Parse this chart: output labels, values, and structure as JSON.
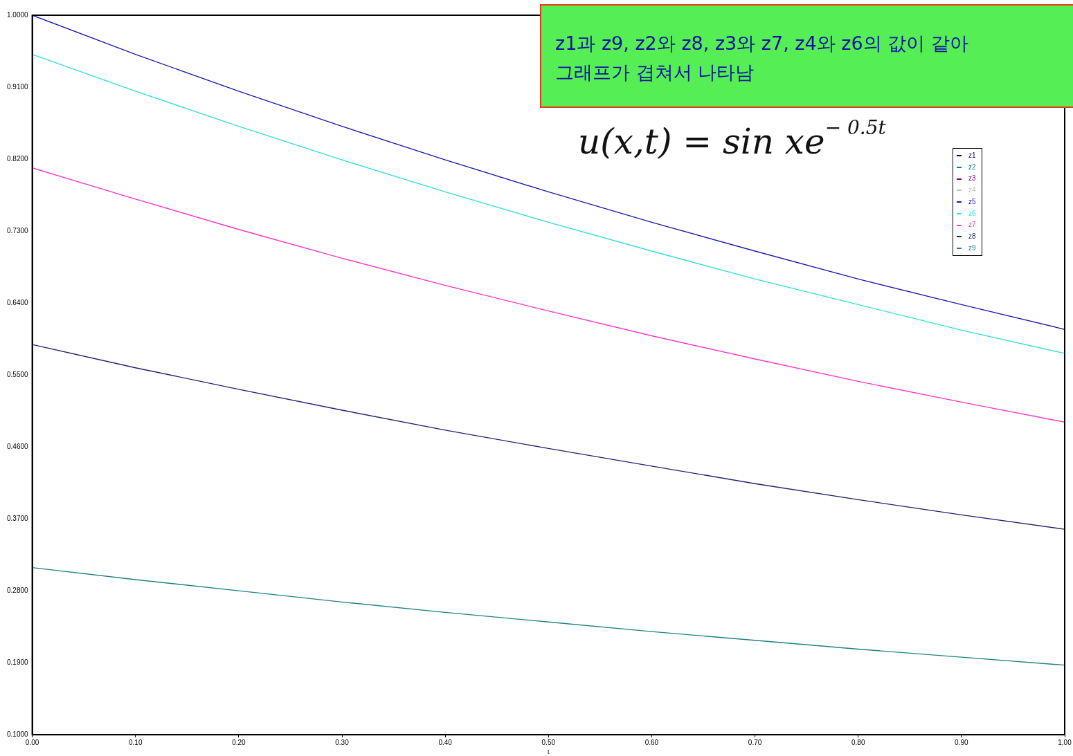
{
  "chart_data": {
    "type": "line",
    "xlabel": "t",
    "x": [
      0,
      0.1,
      0.2,
      0.3,
      0.4,
      0.5,
      0.6,
      0.7,
      0.8,
      0.9,
      1.0
    ],
    "series": [
      {
        "name": "z1",
        "color": "#000060",
        "values": [
          null,
          null,
          null,
          null,
          null,
          null,
          null,
          null,
          null,
          null,
          null
        ]
      },
      {
        "name": "z2",
        "color": "#008080",
        "values": [
          null,
          null,
          null,
          null,
          null,
          null,
          null,
          null,
          null,
          null,
          null
        ]
      },
      {
        "name": "z3",
        "color": "#800080",
        "values": [
          null,
          null,
          null,
          null,
          null,
          null,
          null,
          null,
          null,
          null,
          null
        ]
      },
      {
        "name": "z4",
        "color": "#c0c0c0",
        "values": [
          null,
          null,
          null,
          null,
          null,
          null,
          null,
          null,
          null,
          null,
          null
        ]
      },
      {
        "name": "z5",
        "color": "#1a1ab0",
        "values": [
          1.0,
          0.951,
          0.905,
          0.861,
          0.819,
          0.779,
          0.741,
          0.705,
          0.67,
          0.638,
          0.607
        ]
      },
      {
        "name": "z6",
        "color": "#33dddd",
        "values": [
          0.951,
          0.905,
          0.861,
          0.819,
          0.779,
          0.741,
          0.705,
          0.67,
          0.638,
          0.606,
          0.577
        ]
      },
      {
        "name": "z7",
        "color": "#ff33cc",
        "values": [
          0.809,
          0.77,
          0.732,
          0.696,
          0.662,
          0.63,
          0.599,
          0.57,
          0.542,
          0.516,
          0.491
        ]
      },
      {
        "name": "z8",
        "color": "#202070",
        "values": [
          0.588,
          0.559,
          0.532,
          0.506,
          0.481,
          0.458,
          0.436,
          0.414,
          0.394,
          0.375,
          0.357
        ]
      },
      {
        "name": "z9",
        "color": "#208080",
        "values": [
          0.309,
          0.294,
          0.28,
          0.266,
          0.253,
          0.241,
          0.229,
          0.218,
          0.207,
          0.197,
          0.187
        ]
      }
    ],
    "xlim": [
      0,
      1.0
    ],
    "xticks": [
      {
        "value": 0,
        "label": "0.00"
      },
      {
        "value": 0.1,
        "label": "0.10"
      },
      {
        "value": 0.2,
        "label": "0.20"
      },
      {
        "value": 0.3,
        "label": "0.30"
      },
      {
        "value": 0.4,
        "label": "0.40"
      },
      {
        "value": 0.5,
        "label": "0.50"
      },
      {
        "value": 0.6,
        "label": "0.60"
      },
      {
        "value": 0.7,
        "label": "0.70"
      },
      {
        "value": 0.8,
        "label": "0.80"
      },
      {
        "value": 0.9,
        "label": "0.90"
      },
      {
        "value": 1.0,
        "label": "1.00"
      }
    ],
    "ylim": [
      0.1,
      1.0
    ],
    "yticks": [
      {
        "value": 0.1,
        "label": "0.1000"
      },
      {
        "value": 0.19,
        "label": "0.1900"
      },
      {
        "value": 0.28,
        "label": "0.2800"
      },
      {
        "value": 0.37,
        "label": "0.3700"
      },
      {
        "value": 0.46,
        "label": "0.4600"
      },
      {
        "value": 0.55,
        "label": "0.5500"
      },
      {
        "value": 0.64,
        "label": "0.6400"
      },
      {
        "value": 0.73,
        "label": "0.7300"
      },
      {
        "value": 0.82,
        "label": "0.8200"
      },
      {
        "value": 0.91,
        "label": "0.9100"
      },
      {
        "value": 1.0,
        "label": "1.0000"
      }
    ],
    "grid": false,
    "legend": "top right",
    "marker": "none",
    "line_style": "solid",
    "annotations": [
      "z1과 z9, z2와 z8, z3와 z7, z4와 z6의 값이 같아",
      "그래프가 겹쳐서 나타남",
      "u(x,t) = sin xe$^{− 0.5t}$"
    ]
  }
}
